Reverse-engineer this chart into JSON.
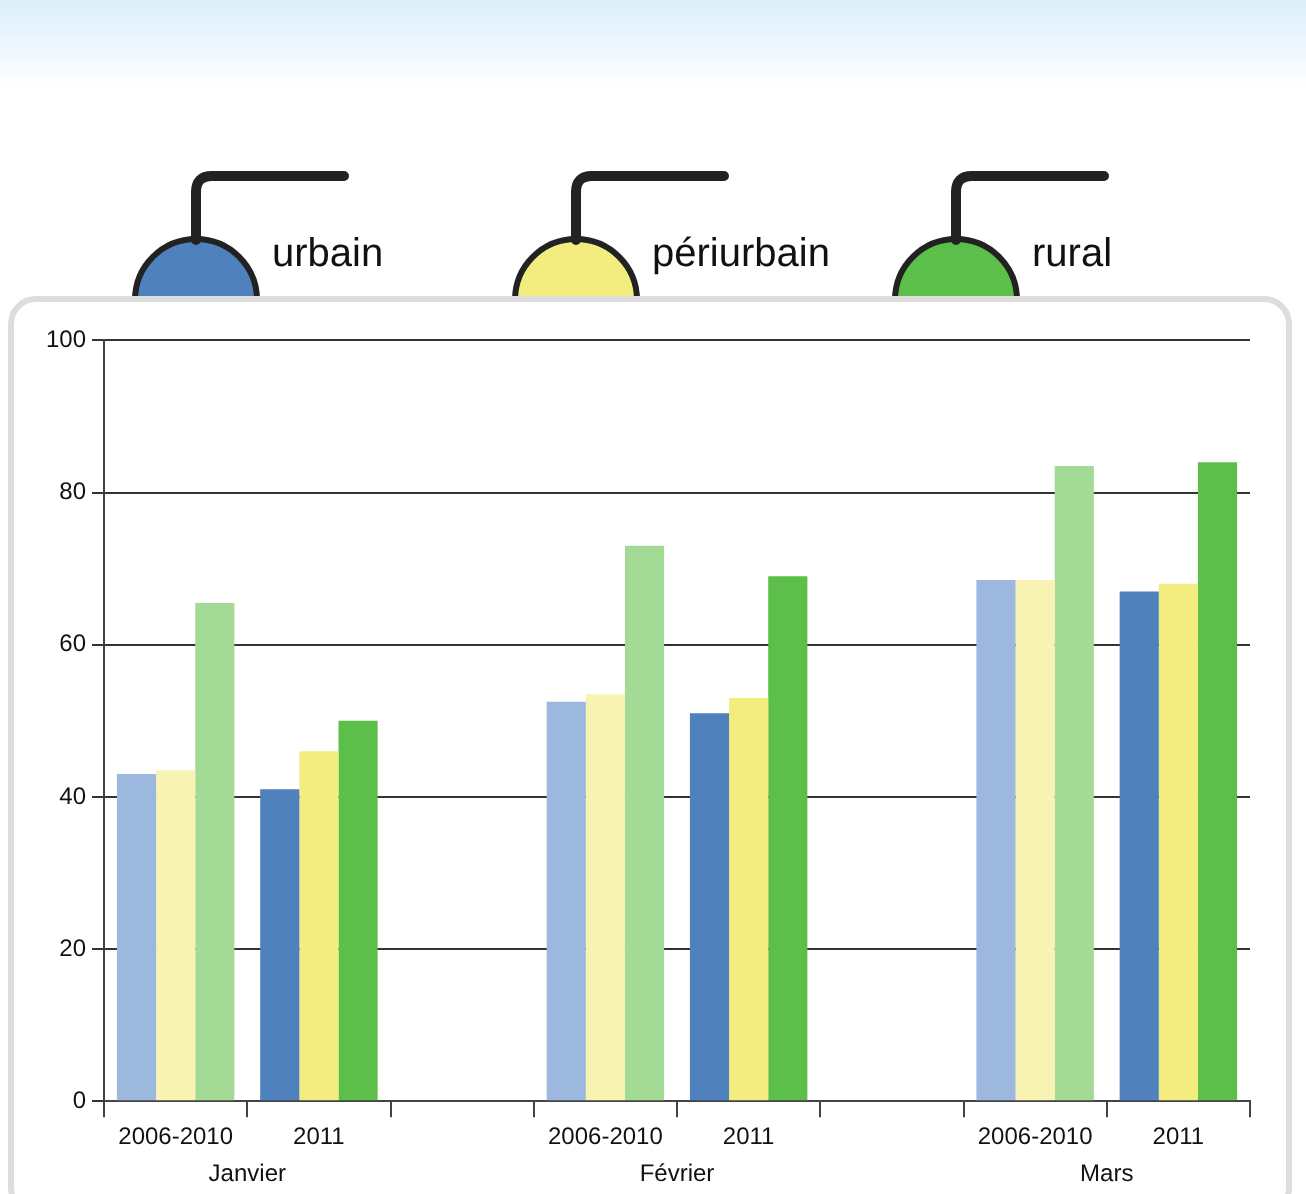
{
  "chart_data": {
    "type": "bar",
    "categories": [
      "2006-2010",
      "2011",
      null,
      "2006-2010",
      "2011",
      null,
      "2006-2010",
      "2011"
    ],
    "series": [
      {
        "name": "urbain",
        "color": "#4f81bd",
        "colors": [
          "#9db8de",
          "#4f81bd",
          null,
          "#9db8de",
          "#4f81bd",
          null,
          "#9db8de",
          "#4f81bd"
        ],
        "values": [
          43,
          41,
          null,
          52.5,
          51,
          null,
          68.5,
          67
        ]
      },
      {
        "name": "périurbain",
        "color": "#f3ec7f",
        "colors": [
          "#f8f3b3",
          "#f3ec7f",
          null,
          "#f8f3b3",
          "#f3ec7f",
          null,
          "#f8f3b3",
          "#f3ec7f"
        ],
        "values": [
          43.5,
          46,
          null,
          53.5,
          53,
          null,
          68.5,
          68
        ]
      },
      {
        "name": "rural",
        "color": "#5cbf4a",
        "colors": [
          "#a2da96",
          "#5cbf4a",
          null,
          "#a2da96",
          "#5cbf4a",
          null,
          "#a2da96",
          "#5cbf4a"
        ],
        "values": [
          65.5,
          50,
          null,
          73,
          69,
          null,
          83.5,
          84
        ]
      }
    ],
    "annotations": [
      "Janvier",
      "Février",
      "Mars"
    ],
    "ylim": [
      0,
      100
    ],
    "yticks": [
      0,
      20,
      40,
      60,
      80,
      100
    ],
    "grid": "y",
    "legend": "top"
  }
}
